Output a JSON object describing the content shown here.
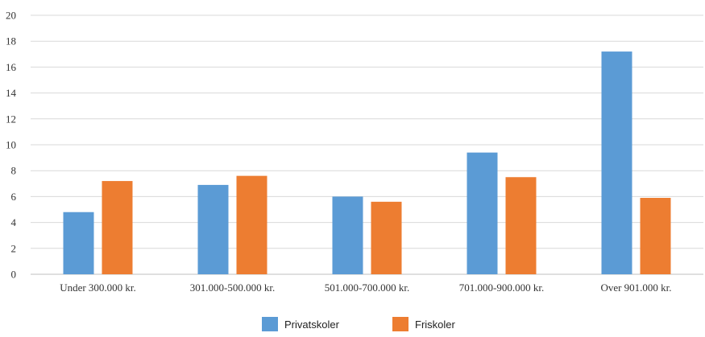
{
  "chart_data": {
    "type": "bar",
    "categories": [
      "Under 300.000 kr.",
      "301.000-500.000 kr.",
      "501.000-700.000 kr.",
      "701.000-900.000 kr.",
      "Over 901.000 kr."
    ],
    "series": [
      {
        "name": "Privatskoler",
        "color": "#5b9bd5",
        "values": [
          4.8,
          6.9,
          6.0,
          9.4,
          17.2
        ]
      },
      {
        "name": "Friskoler",
        "color": "#ed7d31",
        "values": [
          7.2,
          7.6,
          5.6,
          7.5,
          5.9
        ]
      }
    ],
    "yticks": [
      "0",
      "2",
      "4",
      "6",
      "8",
      "10",
      "12",
      "14",
      "16",
      "18",
      "20"
    ],
    "ylim": [
      0,
      20
    ],
    "grid": true,
    "legend": "bottom-center",
    "title": "",
    "xlabel": "",
    "ylabel": ""
  }
}
